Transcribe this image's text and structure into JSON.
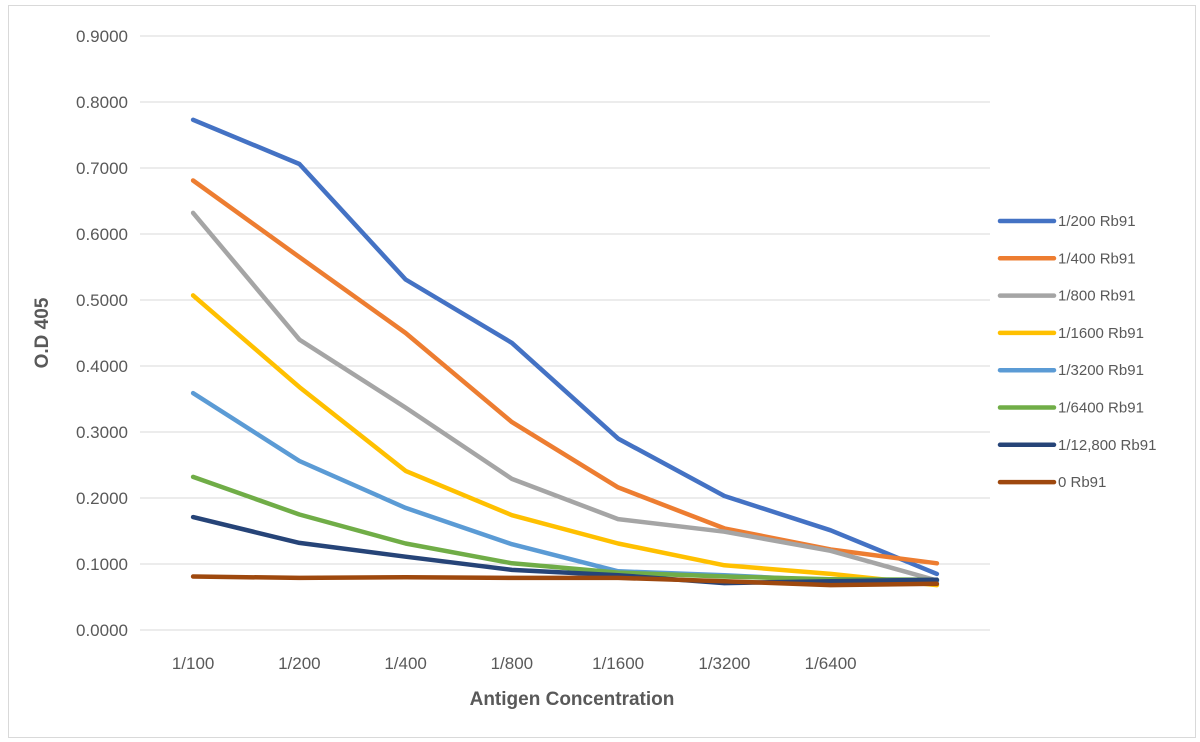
{
  "chart_data": {
    "type": "line",
    "title": "",
    "xlabel": "Antigen Concentration",
    "ylabel": "O.D 405",
    "categories": [
      "1/100",
      "1/200",
      "1/400",
      "1/800",
      "1/1600",
      "1/3200",
      "1/6400",
      ""
    ],
    "ylim": [
      0,
      0.9
    ],
    "y_ticks": [
      "0.0000",
      "0.1000",
      "0.2000",
      "0.3000",
      "0.4000",
      "0.5000",
      "0.6000",
      "0.7000",
      "0.8000",
      "0.9000"
    ],
    "grid": true,
    "legend_position": "right",
    "series": [
      {
        "name": "1/200 Rb91",
        "color": "#4472C4",
        "values": [
          0.773,
          0.706,
          0.531,
          0.435,
          0.29,
          0.203,
          0.151,
          0.085
        ]
      },
      {
        "name": "1/400 Rb91",
        "color": "#ED7D31",
        "values": [
          0.681,
          0.565,
          0.45,
          0.315,
          0.216,
          0.154,
          0.122,
          0.101
        ]
      },
      {
        "name": "1/800 Rb91",
        "color": "#A5A5A5",
        "values": [
          0.632,
          0.44,
          0.337,
          0.229,
          0.168,
          0.149,
          0.12,
          0.075
        ]
      },
      {
        "name": "1/1600 Rb91",
        "color": "#FFC000",
        "values": [
          0.507,
          0.368,
          0.241,
          0.174,
          0.131,
          0.098,
          0.085,
          0.068
        ]
      },
      {
        "name": "1/3200 Rb91",
        "color": "#5B9BD5",
        "values": [
          0.359,
          0.256,
          0.185,
          0.13,
          0.089,
          0.083,
          0.075,
          0.074
        ]
      },
      {
        "name": "1/6400 Rb91",
        "color": "#70AD47",
        "values": [
          0.232,
          0.175,
          0.131,
          0.101,
          0.087,
          0.081,
          0.077,
          0.076
        ]
      },
      {
        "name": "1/12,800 Rb91",
        "color": "#264478",
        "values": [
          0.171,
          0.132,
          0.111,
          0.091,
          0.083,
          0.071,
          0.074,
          0.076
        ]
      },
      {
        "name": "0 Rb91",
        "color": "#9E480E",
        "values": [
          0.081,
          0.079,
          0.08,
          0.079,
          0.079,
          0.074,
          0.068,
          0.07
        ]
      }
    ]
  }
}
